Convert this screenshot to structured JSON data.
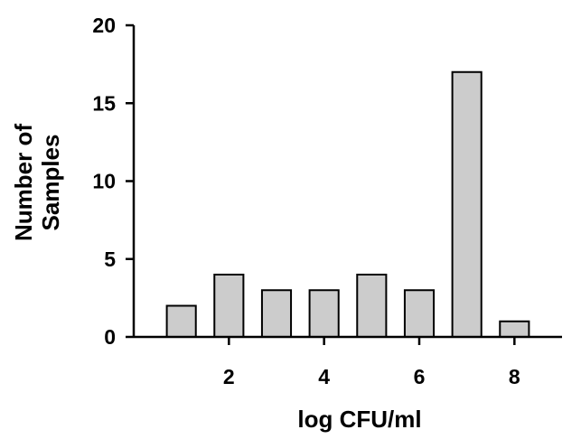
{
  "chart_data": {
    "type": "bar",
    "x": [
      1,
      2,
      3,
      4,
      5,
      6,
      7,
      8
    ],
    "values": [
      2,
      4,
      3,
      3,
      4,
      3,
      17,
      1
    ],
    "xlabel": "log CFU/ml",
    "ylabel": [
      "Number of",
      "Samples"
    ],
    "xlim": [
      0,
      9
    ],
    "ylim": [
      0,
      20
    ],
    "x_ticks": [
      "2",
      "4",
      "6",
      "8"
    ],
    "y_ticks": [
      "0",
      "5",
      "10",
      "15",
      "20"
    ],
    "grid": false,
    "legend": "none",
    "colors": {
      "bar_fill": "#cccccc",
      "bar_stroke": "#000000",
      "axis": "#000000"
    }
  }
}
